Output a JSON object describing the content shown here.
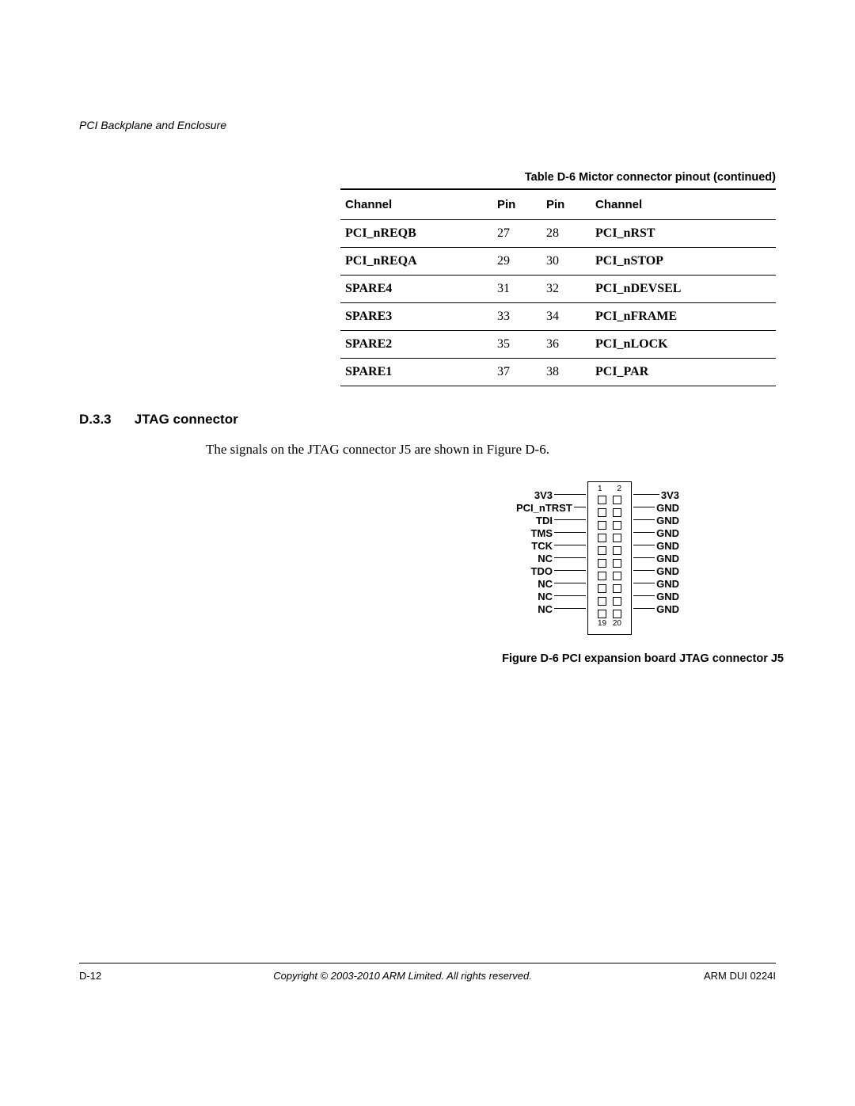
{
  "header": {
    "running": "PCI Backplane and Enclosure"
  },
  "table": {
    "title": "Table D-6 Mictor connector pinout (continued)",
    "columns": [
      "Channel",
      "Pin",
      "Pin",
      "Channel"
    ],
    "rows": [
      {
        "c1": "PCI_nREQB",
        "p1": "27",
        "p2": "28",
        "c2": "PCI_nRST"
      },
      {
        "c1": "PCI_nREQA",
        "p1": "29",
        "p2": "30",
        "c2": "PCI_nSTOP"
      },
      {
        "c1": "SPARE4",
        "p1": "31",
        "p2": "32",
        "c2": "PCI_nDEVSEL"
      },
      {
        "c1": "SPARE3",
        "p1": "33",
        "p2": "34",
        "c2": "PCI_nFRAME"
      },
      {
        "c1": "SPARE2",
        "p1": "35",
        "p2": "36",
        "c2": "PCI_nLOCK"
      },
      {
        "c1": "SPARE1",
        "p1": "37",
        "p2": "38",
        "c2": "PCI_PAR"
      }
    ]
  },
  "section": {
    "num": "D.3.3",
    "title": "JTAG connector",
    "body": "The signals on the JTAG connector J5 are shown in Figure D-6."
  },
  "figure": {
    "left": [
      "3V3",
      "PCI_nTRST",
      "TDI",
      "TMS",
      "TCK",
      "NC",
      "TDO",
      "NC",
      "NC",
      "NC"
    ],
    "right": [
      "3V3",
      "GND",
      "GND",
      "GND",
      "GND",
      "GND",
      "GND",
      "GND",
      "GND",
      "GND"
    ],
    "top_labels": [
      "1",
      "2"
    ],
    "bottom_labels": [
      "19",
      "20"
    ],
    "caption": "Figure D-6 PCI expansion board JTAG connector J5"
  },
  "footer": {
    "page": "D-12",
    "copyright": "Copyright © 2003-2010 ARM Limited. All rights reserved.",
    "doc": "ARM DUI 0224I"
  }
}
